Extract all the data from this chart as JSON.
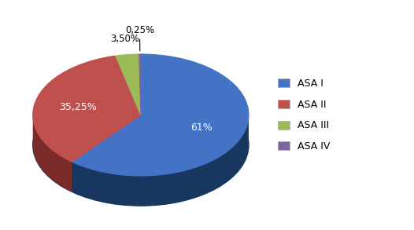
{
  "labels": [
    "ASA I",
    "ASA II",
    "ASA III",
    "ASA IV"
  ],
  "values": [
    61.0,
    35.25,
    3.5,
    0.25
  ],
  "colors": [
    "#4472C4",
    "#C0504D",
    "#9BBB59",
    "#8064A2"
  ],
  "dark_colors": [
    "#17375E",
    "#7B2C2A",
    "#4F6228",
    "#3F3151"
  ],
  "autopct_labels": [
    "61%",
    "35,25%",
    "3,50%",
    "0,25%"
  ],
  "legend_labels": [
    "ASA I",
    "ASA II",
    "ASA III",
    "ASA IV"
  ],
  "background_color": "#FFFFFF",
  "figsize": [
    5.26,
    2.93
  ],
  "dpi": 100
}
